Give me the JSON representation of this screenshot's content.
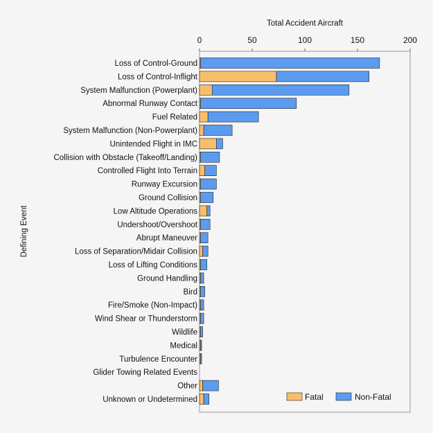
{
  "chart_data": {
    "type": "bar",
    "orientation": "horizontal",
    "stacked": true,
    "xlabel": "Total Accident Aircraft",
    "ylabel": "Defining Event",
    "xlim": [
      0,
      200
    ],
    "xticks": [
      0,
      50,
      100,
      150,
      200
    ],
    "x_axis_position": "top",
    "grid": false,
    "legend_position": "bottom-right",
    "categories": [
      "Loss of Control-Ground",
      "Loss of Control-Inflight",
      "System Malfunction (Powerplant)",
      "Abnormal Runway Contact",
      "Fuel Related",
      "System Malfunction (Non-Powerplant)",
      "Unintended Flight in IMC",
      "Collision with Obstacle (Takeoff/Landing)",
      "Controlled Flight Into Terrain",
      "Runway Excursion",
      "Ground Collision",
      "Low Altitude Operations",
      "Undershoot/Overshoot",
      "Abrupt Maneuver",
      "Loss of Separation/Midair Collision",
      "Loss of Lifting Conditions",
      "Ground Handling",
      "Bird",
      "Fire/Smoke (Non-Impact)",
      "Wind Shear or Thunderstorm",
      "Wildlife",
      "Medical",
      "Turbulence Encounter",
      "Glider Towing Related Events",
      "Other",
      "Unknown or Undetermined"
    ],
    "series": [
      {
        "name": "Fatal",
        "color": "#f8bf6a",
        "values": [
          1,
          73,
          12,
          1,
          8,
          4,
          16,
          1,
          5,
          1,
          1,
          7,
          1,
          1,
          3,
          1,
          1,
          1,
          1,
          1,
          1,
          1,
          1,
          0,
          3,
          4
        ]
      },
      {
        "name": "Non-Fatal",
        "color": "#5b9cf0",
        "values": [
          170,
          88,
          130,
          91,
          48,
          27,
          6,
          18,
          11,
          15,
          12,
          3,
          9,
          7,
          5,
          6,
          3,
          4,
          3,
          3,
          2,
          1,
          1,
          0,
          15,
          5
        ]
      }
    ]
  }
}
